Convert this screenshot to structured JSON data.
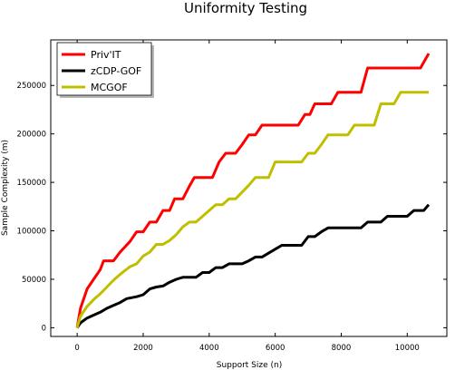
{
  "chart_data": {
    "type": "line",
    "title": "Uniformity Testing",
    "xlabel": "Support Size (n)",
    "ylabel": "Sample Complexity (m)",
    "xlim": [
      -800,
      11200
    ],
    "ylim": [
      -9000,
      297000
    ],
    "x_ticks": [
      0,
      2000,
      4000,
      6000,
      8000,
      10000
    ],
    "x_tick_labels": [
      "0",
      "2000",
      "4000",
      "6000",
      "8000",
      "10000"
    ],
    "y_ticks": [
      0,
      50000,
      100000,
      150000,
      200000,
      250000
    ],
    "y_tick_labels": [
      "0",
      "50000",
      "100000",
      "150000",
      "200000",
      "250000"
    ],
    "grid": false,
    "legend_position": "top-left",
    "series": [
      {
        "name": "Priv'IT",
        "color": "#ff0000",
        "points": [
          [
            0,
            0
          ],
          [
            100,
            20000
          ],
          [
            300,
            40000
          ],
          [
            500,
            50000
          ],
          [
            700,
            60000
          ],
          [
            800,
            69000
          ],
          [
            1100,
            69000
          ],
          [
            1300,
            78000
          ],
          [
            1600,
            89000
          ],
          [
            1800,
            99000
          ],
          [
            2000,
            99000
          ],
          [
            2200,
            109000
          ],
          [
            2400,
            109000
          ],
          [
            2600,
            121000
          ],
          [
            2800,
            121000
          ],
          [
            2950,
            133000
          ],
          [
            3200,
            133000
          ],
          [
            3400,
            146000
          ],
          [
            3550,
            155000
          ],
          [
            4100,
            155000
          ],
          [
            4300,
            171000
          ],
          [
            4500,
            180000
          ],
          [
            4800,
            180000
          ],
          [
            5000,
            189000
          ],
          [
            5200,
            199000
          ],
          [
            5400,
            199000
          ],
          [
            5600,
            209000
          ],
          [
            6700,
            209000
          ],
          [
            6900,
            220000
          ],
          [
            7050,
            220000
          ],
          [
            7200,
            231000
          ],
          [
            7700,
            231000
          ],
          [
            7900,
            243000
          ],
          [
            8600,
            243000
          ],
          [
            8800,
            268000
          ],
          [
            10400,
            268000
          ],
          [
            10650,
            283000
          ]
        ]
      },
      {
        "name": "zCDP-GOF",
        "color": "#000000",
        "points": [
          [
            0,
            0
          ],
          [
            100,
            5000
          ],
          [
            300,
            10000
          ],
          [
            500,
            13000
          ],
          [
            700,
            16000
          ],
          [
            900,
            20000
          ],
          [
            1100,
            23000
          ],
          [
            1300,
            26000
          ],
          [
            1500,
            30000
          ],
          [
            1800,
            32000
          ],
          [
            2000,
            34000
          ],
          [
            2200,
            40000
          ],
          [
            2400,
            42000
          ],
          [
            2600,
            43000
          ],
          [
            2800,
            47000
          ],
          [
            3000,
            50000
          ],
          [
            3200,
            52000
          ],
          [
            3600,
            52000
          ],
          [
            3800,
            57000
          ],
          [
            4000,
            57000
          ],
          [
            4200,
            62000
          ],
          [
            4400,
            62000
          ],
          [
            4600,
            66000
          ],
          [
            5000,
            66000
          ],
          [
            5200,
            69000
          ],
          [
            5400,
            73000
          ],
          [
            5600,
            73000
          ],
          [
            5800,
            77000
          ],
          [
            6000,
            81000
          ],
          [
            6200,
            85000
          ],
          [
            6800,
            85000
          ],
          [
            7000,
            94000
          ],
          [
            7200,
            94000
          ],
          [
            7400,
            99000
          ],
          [
            7600,
            103000
          ],
          [
            8600,
            103000
          ],
          [
            8800,
            109000
          ],
          [
            9200,
            109000
          ],
          [
            9400,
            115000
          ],
          [
            10000,
            115000
          ],
          [
            10200,
            121000
          ],
          [
            10500,
            121000
          ],
          [
            10650,
            127000
          ]
        ]
      },
      {
        "name": "MCGOF",
        "color": "#bfbf00",
        "points": [
          [
            0,
            0
          ],
          [
            100,
            12000
          ],
          [
            300,
            22000
          ],
          [
            500,
            29000
          ],
          [
            700,
            35000
          ],
          [
            900,
            42000
          ],
          [
            1100,
            49000
          ],
          [
            1300,
            55000
          ],
          [
            1600,
            63000
          ],
          [
            1800,
            66000
          ],
          [
            2000,
            74000
          ],
          [
            2200,
            78000
          ],
          [
            2400,
            86000
          ],
          [
            2600,
            86000
          ],
          [
            2800,
            90000
          ],
          [
            3000,
            96000
          ],
          [
            3200,
            104000
          ],
          [
            3400,
            109000
          ],
          [
            3600,
            109000
          ],
          [
            3800,
            115000
          ],
          [
            4000,
            121000
          ],
          [
            4200,
            127000
          ],
          [
            4400,
            127000
          ],
          [
            4600,
            133000
          ],
          [
            4800,
            133000
          ],
          [
            5000,
            140000
          ],
          [
            5200,
            147000
          ],
          [
            5400,
            155000
          ],
          [
            5800,
            155000
          ],
          [
            6000,
            171000
          ],
          [
            6800,
            171000
          ],
          [
            7000,
            180000
          ],
          [
            7200,
            180000
          ],
          [
            7400,
            189000
          ],
          [
            7600,
            199000
          ],
          [
            8200,
            199000
          ],
          [
            8400,
            209000
          ],
          [
            8800,
            209000
          ],
          [
            9000,
            209000
          ],
          [
            9200,
            231000
          ],
          [
            9600,
            231000
          ],
          [
            9800,
            243000
          ],
          [
            10650,
            243000
          ]
        ]
      }
    ]
  }
}
